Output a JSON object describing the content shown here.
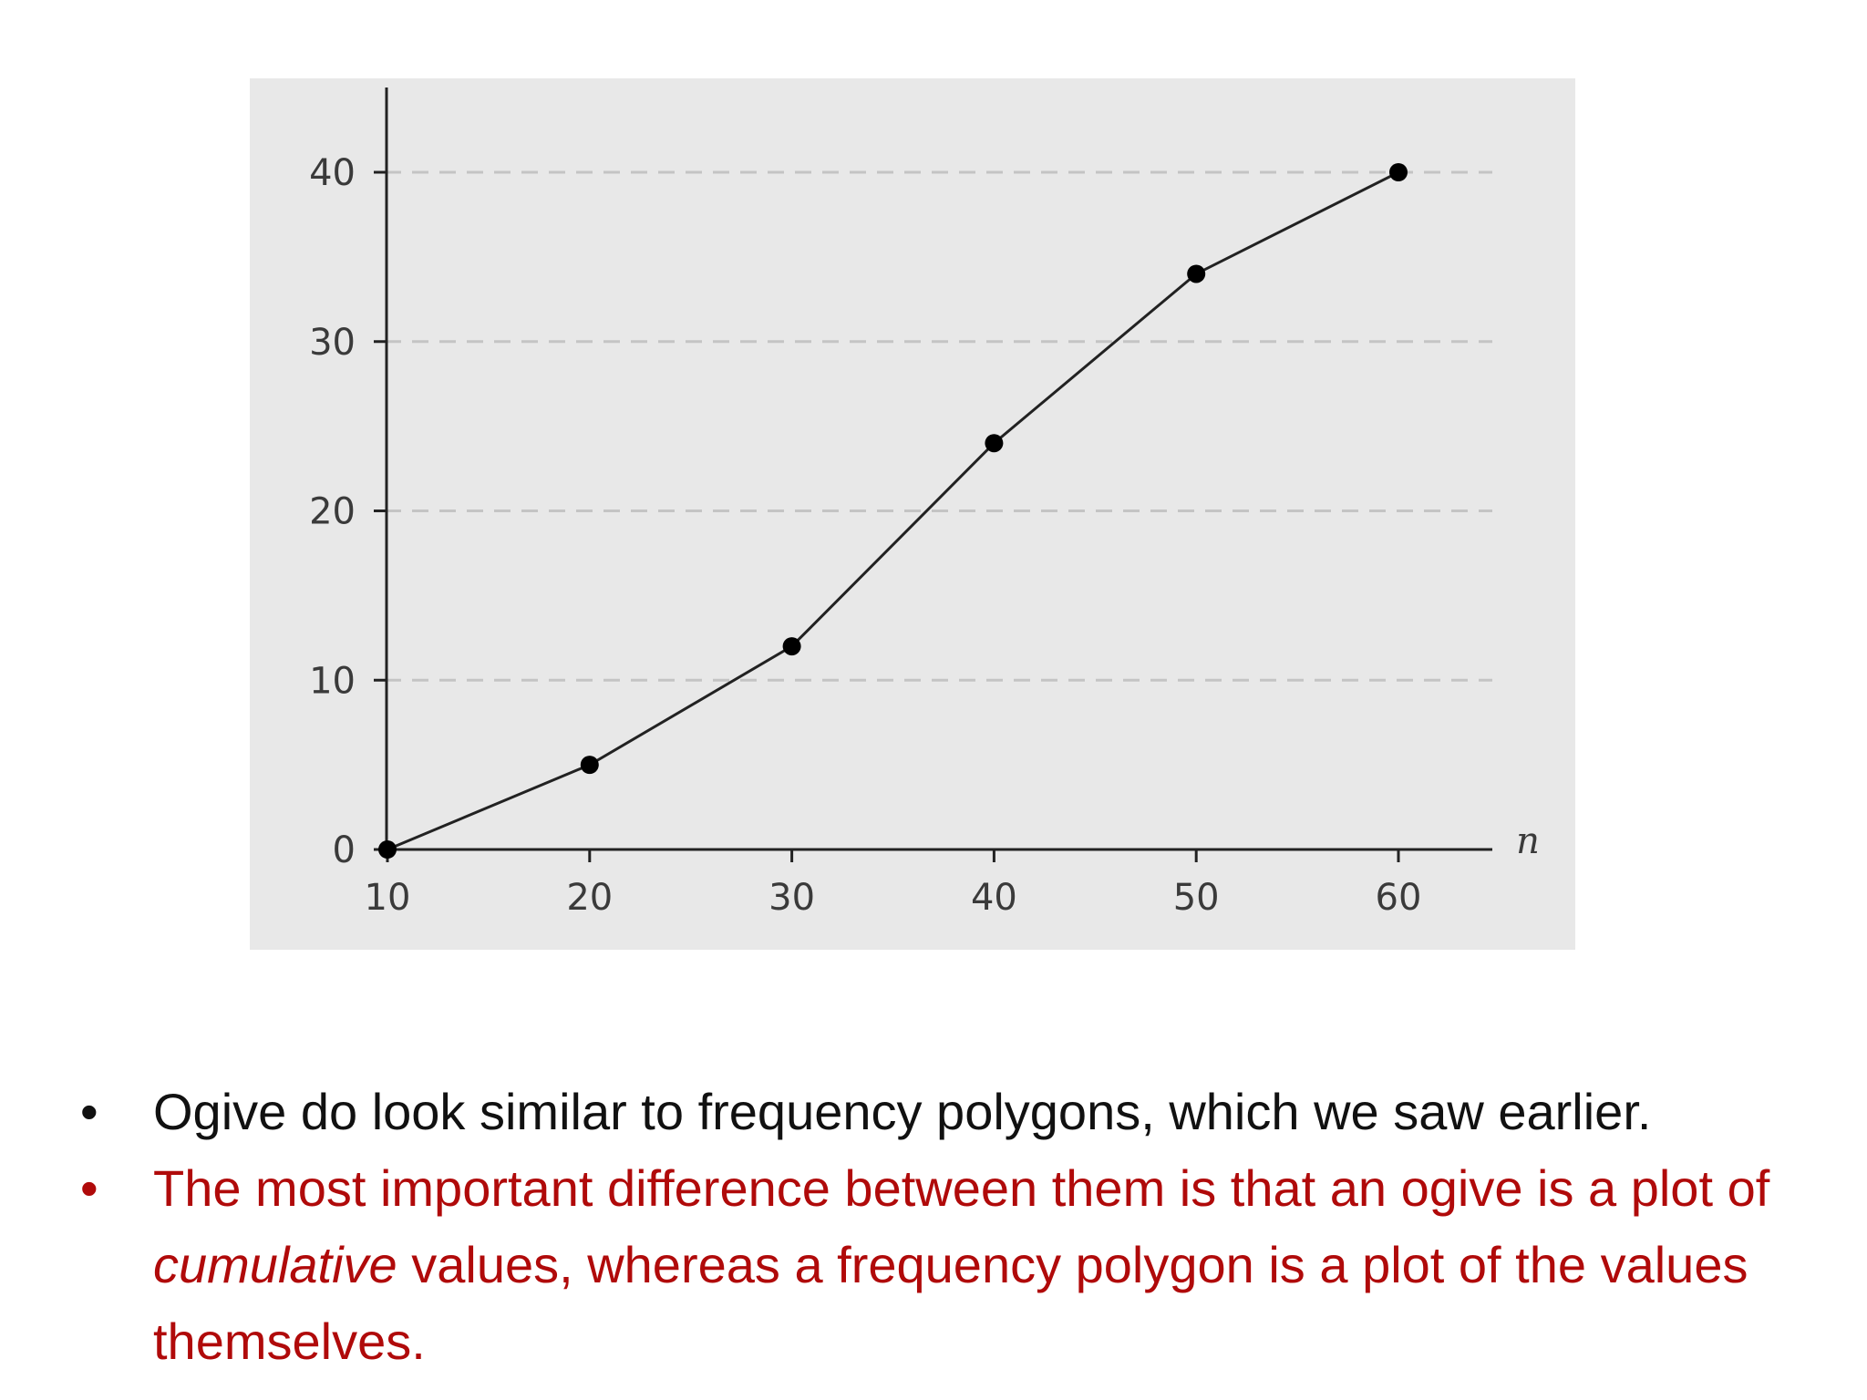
{
  "chart_data": {
    "type": "line",
    "x": [
      10,
      20,
      30,
      40,
      50,
      60
    ],
    "y": [
      0,
      5,
      12,
      24,
      34,
      40
    ],
    "xticks": [
      "10",
      "20",
      "30",
      "40",
      "50",
      "60"
    ],
    "yticks": [
      "0",
      "10",
      "20",
      "30",
      "40"
    ],
    "xlabel": "n",
    "ylabel": "",
    "xlim": [
      5,
      65
    ],
    "ylim": [
      0,
      45
    ],
    "grid": "horizontal dashed",
    "colors": {
      "background": "#e8e8e8",
      "line": "#222222",
      "marker": "#000000",
      "grid": "#c4c4c4"
    }
  },
  "bullets": [
    {
      "marker": "•",
      "text": "Ogive do look similar to frequency polygons, which we saw earlier.",
      "color": "#111111"
    },
    {
      "marker": "•",
      "text_before": "The most important difference between them is that an ogive is a plot of ",
      "text_italic": "cumulative",
      "text_after": " values, whereas a frequency polygon is a plot of the values themselves.",
      "color": "#b00a0a"
    }
  ]
}
